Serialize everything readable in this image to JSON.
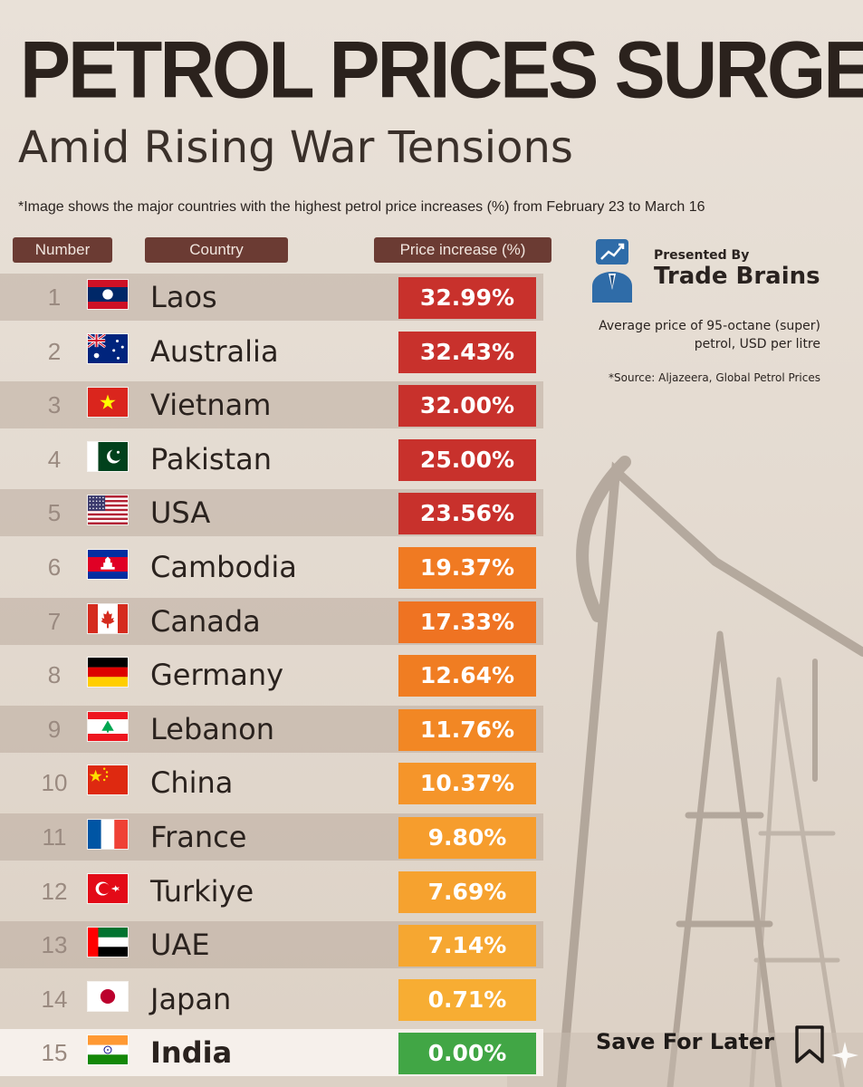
{
  "header": {
    "title": "PETROL PRICES SURGE",
    "subtitle": "Amid Rising War Tensions",
    "note": "*Image shows the major countries with the highest petrol price increases (%) from February 23 to March 16"
  },
  "columns": {
    "number": "Number",
    "country": "Country",
    "increase": "Price increase (%)"
  },
  "brand": {
    "presented": "Presented By",
    "name": "Trade Brains",
    "icon": "chart-presenter-icon"
  },
  "side": {
    "avg_line1": "Average price of 95-octane (super)",
    "avg_line2": "petrol, USD per litre",
    "source": "*Source: Aljazeera, Global Petrol Prices"
  },
  "footer": {
    "save_label": "Save For Later",
    "save_icon": "bookmark-icon"
  },
  "colors": {
    "red": "#c8312c",
    "orange_dark": "#ee6a1f",
    "orange": "#f5962a",
    "amber": "#f7ae33",
    "green": "#41a645",
    "header_bg": "#6b3b33"
  },
  "chart_data": {
    "type": "table",
    "title": "PETROL PRICES SURGE",
    "subtitle": "Amid Rising War Tensions",
    "columns": [
      "Number",
      "Country",
      "Price increase (%)"
    ],
    "rows": [
      {
        "rank": "1",
        "country": "Laos",
        "flag": "laos",
        "value": 32.99,
        "label": "32.99%",
        "color": "#c8312c"
      },
      {
        "rank": "2",
        "country": "Australia",
        "flag": "australia",
        "value": 32.43,
        "label": "32.43%",
        "color": "#c8312c"
      },
      {
        "rank": "3",
        "country": "Vietnam",
        "flag": "vietnam",
        "value": 32.0,
        "label": "32.00%",
        "color": "#c8312c"
      },
      {
        "rank": "4",
        "country": "Pakistan",
        "flag": "pakistan",
        "value": 25.0,
        "label": "25.00%",
        "color": "#c8312c"
      },
      {
        "rank": "5",
        "country": "USA",
        "flag": "usa",
        "value": 23.56,
        "label": "23.56%",
        "color": "#c8312c"
      },
      {
        "rank": "6",
        "country": "Cambodia",
        "flag": "cambodia",
        "value": 19.37,
        "label": "19.37%",
        "color": "#f07a22"
      },
      {
        "rank": "7",
        "country": "Canada",
        "flag": "canada",
        "value": 17.33,
        "label": "17.33%",
        "color": "#ef7322"
      },
      {
        "rank": "8",
        "country": "Germany",
        "flag": "germany",
        "value": 12.64,
        "label": "12.64%",
        "color": "#f07d22"
      },
      {
        "rank": "9",
        "country": "Lebanon",
        "flag": "lebanon",
        "value": 11.76,
        "label": "11.76%",
        "color": "#f28724"
      },
      {
        "rank": "10",
        "country": "China",
        "flag": "china",
        "value": 10.37,
        "label": "10.37%",
        "color": "#f5952a"
      },
      {
        "rank": "11",
        "country": "France",
        "flag": "france",
        "value": 9.8,
        "label": "9.80%",
        "color": "#f69d2d"
      },
      {
        "rank": "12",
        "country": "Turkiye",
        "flag": "turkiye",
        "value": 7.69,
        "label": "7.69%",
        "color": "#f6a22f"
      },
      {
        "rank": "13",
        "country": "UAE",
        "flag": "uae",
        "value": 7.14,
        "label": "7.14%",
        "color": "#f6a731"
      },
      {
        "rank": "14",
        "country": "Japan",
        "flag": "japan",
        "value": 0.71,
        "label": "0.71%",
        "color": "#f7ad33"
      },
      {
        "rank": "15",
        "country": "India",
        "flag": "india",
        "value": 0.0,
        "label": "0.00%",
        "color": "#41a645",
        "highlight": true
      }
    ]
  }
}
